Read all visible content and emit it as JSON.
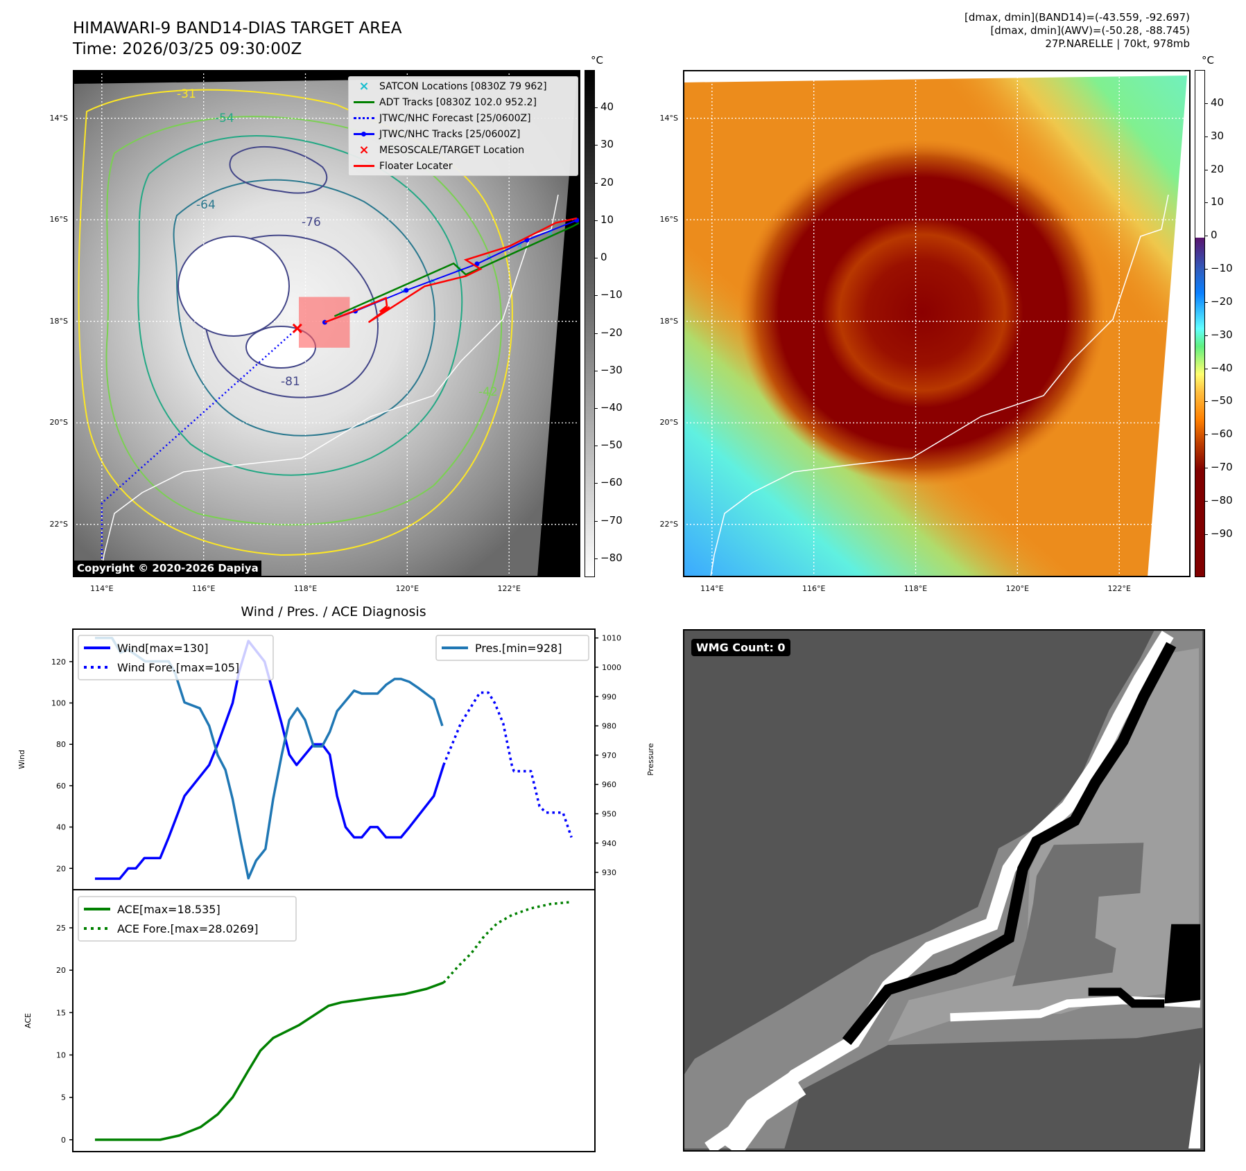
{
  "header": {
    "title_line1": "HIMAWARI-9 BAND14-DIAS TARGET AREA",
    "title_line2": "Time: 2026/03/25 09:30:00Z",
    "stats_line1": "[dmax, dmin](BAND14)=(-43.559, -92.697)",
    "stats_line2": "[dmax, dmin](AWV)=(-50.28, -88.745)",
    "stats_line3": "27P.NARELLE | 70kt, 978mb"
  },
  "maps": {
    "unit": "°C",
    "lat_labels": [
      "14°S",
      "16°S",
      "18°S",
      "20°S",
      "22°S"
    ],
    "lat_values": [
      -14,
      -16,
      -18,
      -20,
      -22
    ],
    "lon_labels": [
      "114°E",
      "116°E",
      "118°E",
      "120°E",
      "122°E"
    ],
    "lon_values": [
      114,
      116,
      118,
      120,
      122
    ],
    "lon_range": [
      113.43,
      123.4
    ],
    "lat_range": [
      -23.04,
      -13.05
    ],
    "copyright": "Copyright © 2020-2026 Dapiya",
    "contour_labels": [
      "-31",
      "-42",
      "-54",
      "-64",
      "-76",
      "-81"
    ],
    "legend": [
      {
        "label": "SATCON Locations [0830Z 79 962]",
        "color": "#17becf",
        "symbol": "x-marker"
      },
      {
        "label": "ADT Tracks [0830Z 102.0 952.2]",
        "color": "#008000",
        "symbol": "line"
      },
      {
        "label": "JTWC/NHC Forecast [25/0600Z]",
        "color": "#0000ff",
        "symbol": "dotted"
      },
      {
        "label": "JTWC/NHC Tracks [25/0600Z]",
        "color": "#0000ff",
        "symbol": "line-dot"
      },
      {
        "label": "MESOSCALE/TARGET Location",
        "color": "#ff0000",
        "symbol": "x-marker"
      },
      {
        "label": "Floater Locater",
        "color": "#ff0000",
        "symbol": "line"
      }
    ],
    "target_location": {
      "lon": 117.84,
      "lat": -18.14
    },
    "target_box": {
      "lon": [
        117.87,
        118.87
      ],
      "lat": [
        -18.52,
        -17.52
      ]
    },
    "jtwc_track": [
      [
        118.38,
        -18.02
      ],
      [
        118.98,
        -17.8
      ],
      [
        119.98,
        -17.39
      ],
      [
        121.37,
        -16.87
      ],
      [
        122.35,
        -16.4
      ],
      [
        123.33,
        -16.01
      ]
    ],
    "jtwc_forecast": [
      [
        117.84,
        -18.14
      ],
      [
        114.0,
        -21.58
      ],
      [
        114.0,
        -23.04
      ]
    ],
    "adt_track": [
      [
        118.57,
        -17.9
      ],
      [
        120.91,
        -16.86
      ],
      [
        121.15,
        -17.08
      ],
      [
        123.25,
        -16.13
      ],
      [
        123.4,
        -16.05
      ]
    ],
    "floater": [
      [
        118.38,
        -18.02
      ],
      [
        118.95,
        -17.8
      ],
      [
        119.58,
        -17.54
      ],
      [
        119.6,
        -17.7
      ],
      [
        119.46,
        -17.81
      ],
      [
        119.65,
        -17.72
      ],
      [
        119.24,
        -18.02
      ],
      [
        120.34,
        -17.31
      ],
      [
        121.15,
        -17.11
      ],
      [
        121.44,
        -16.97
      ],
      [
        121.15,
        -16.79
      ],
      [
        122.01,
        -16.52
      ],
      [
        122.92,
        -16.06
      ],
      [
        123.33,
        -15.97
      ]
    ],
    "satcon": [
      [
        118.7,
        -17.85
      ],
      [
        119.3,
        -17.62
      ],
      [
        119.9,
        -17.4
      ],
      [
        120.5,
        -17.2
      ],
      [
        121.0,
        -16.95
      ],
      [
        121.6,
        -16.75
      ],
      [
        122.2,
        -16.5
      ],
      [
        122.8,
        -16.25
      ]
    ],
    "left_colorbar": {
      "min": -85,
      "max": 50,
      "ticks": [
        40,
        30,
        20,
        10,
        0,
        -10,
        -20,
        -30,
        -40,
        -50,
        -60,
        -70,
        -80
      ]
    },
    "right_colorbar": {
      "min": -103,
      "max": 50,
      "ticks": [
        40,
        30,
        20,
        10,
        0,
        -10,
        -20,
        -30,
        -40,
        -50,
        -60,
        -70,
        -80,
        -90
      ]
    }
  },
  "wmg": {
    "label": "WMG Count: 0"
  },
  "chart_data": [
    {
      "type": "line",
      "title": "Wind / Pres. / ACE Diagnosis",
      "ylabel": "Wind",
      "y2label": "Pressure",
      "xlim": [
        -2.6,
        58.65
      ],
      "ylim": [
        9.7,
        135.7
      ],
      "y2lim": [
        924.1,
        1013
      ],
      "yticks": [
        20,
        40,
        60,
        80,
        100,
        120
      ],
      "y2ticks": [
        930,
        940,
        950,
        960,
        970,
        980,
        990,
        1000,
        1010
      ],
      "legend_left": "top-left",
      "legend_right": "top-right",
      "series": [
        {
          "name": "Wind[max=130]",
          "axis": "left",
          "style": "solid",
          "color": "#0000ff",
          "x": [
            0,
            2.9,
            3.9,
            4.8,
            5.8,
            7.65,
            8.65,
            10.5,
            13.4,
            14.4,
            16.15,
            16.9,
            18,
            19.9,
            20.9,
            21.9,
            22.8,
            23.65,
            24.65,
            25.65,
            26.65,
            27.55,
            28.4,
            29.4,
            30.4,
            31.3,
            32.3,
            33.15,
            34.15,
            35.9,
            36.9,
            39.75,
            40.9
          ],
          "y": [
            15,
            15,
            20,
            20,
            25,
            25,
            35,
            55,
            70,
            80,
            100,
            115,
            130,
            120,
            105,
            90,
            75,
            70,
            75,
            80,
            80,
            75,
            55,
            40,
            35,
            35,
            40,
            40,
            35,
            35,
            40,
            55,
            70
          ]
        },
        {
          "name": "Wind Fore.[max=105]",
          "axis": "left",
          "style": "dotted",
          "color": "#0000ff",
          "x": [
            40.9,
            41.9,
            42.9,
            44.4,
            45.15,
            46.15,
            46.9,
            47.9,
            48.9,
            49.15,
            51.15,
            52.15,
            52.9,
            54.9,
            55.9
          ],
          "y": [
            70,
            80,
            90,
            100,
            105,
            105,
            100,
            90,
            70,
            67,
            67,
            50,
            47,
            47,
            35
          ]
        },
        {
          "name": "Pres.[min=928]",
          "axis": "right",
          "style": "solid",
          "color": "#1f77b4",
          "x": [
            0,
            2,
            3,
            3.9,
            4.9,
            5.9,
            8.65,
            9.4,
            10.5,
            12.3,
            13.4,
            14.4,
            15.3,
            16.15,
            17.15,
            18,
            18.9,
            20,
            20.9,
            21.9,
            22.8,
            23.75,
            24.65,
            25.65,
            26.65,
            27.55,
            28.4,
            30.4,
            31.3,
            33.15,
            34.15,
            35.15,
            35.9,
            36.9,
            37.9,
            39.75,
            40.75
          ],
          "y": [
            1010,
            1010,
            1005,
            1006,
            1004,
            1002,
            1002,
            998,
            988,
            986,
            980,
            970,
            965,
            955,
            940,
            928,
            934,
            938,
            955,
            970,
            982,
            986,
            982,
            973,
            973,
            978,
            985,
            992,
            991,
            991,
            994,
            996,
            996,
            995,
            993,
            989,
            980
          ]
        }
      ]
    },
    {
      "type": "line",
      "ylabel": "ACE",
      "xlim": [
        -2.6,
        58.65
      ],
      "ylim": [
        -1.4,
        29.5
      ],
      "yticks": [
        0,
        5,
        10,
        15,
        20,
        25
      ],
      "legend": "top-left",
      "series": [
        {
          "name": "ACE[max=18.535]",
          "style": "solid",
          "color": "#008000",
          "x": [
            0,
            7.65,
            9.9,
            12.4,
            14.4,
            16.15,
            17.9,
            19.4,
            20.9,
            23.9,
            27.4,
            28.9,
            32.4,
            36.4,
            38.9,
            40.9
          ],
          "y": [
            0,
            0,
            0.5,
            1.5,
            3,
            5,
            8,
            10.5,
            12,
            13.5,
            15.8,
            16.2,
            16.7,
            17.2,
            17.8,
            18.535
          ]
        },
        {
          "name": "ACE Fore.[max=28.0269]",
          "style": "dotted",
          "color": "#008000",
          "x": [
            40.9,
            42.65,
            44.15,
            45.65,
            47.15,
            48.9,
            51.15,
            53.4,
            55.65
          ],
          "y": [
            18.535,
            20.5,
            22,
            24,
            25.5,
            26.5,
            27.3,
            27.8,
            28.0269
          ]
        }
      ]
    }
  ]
}
